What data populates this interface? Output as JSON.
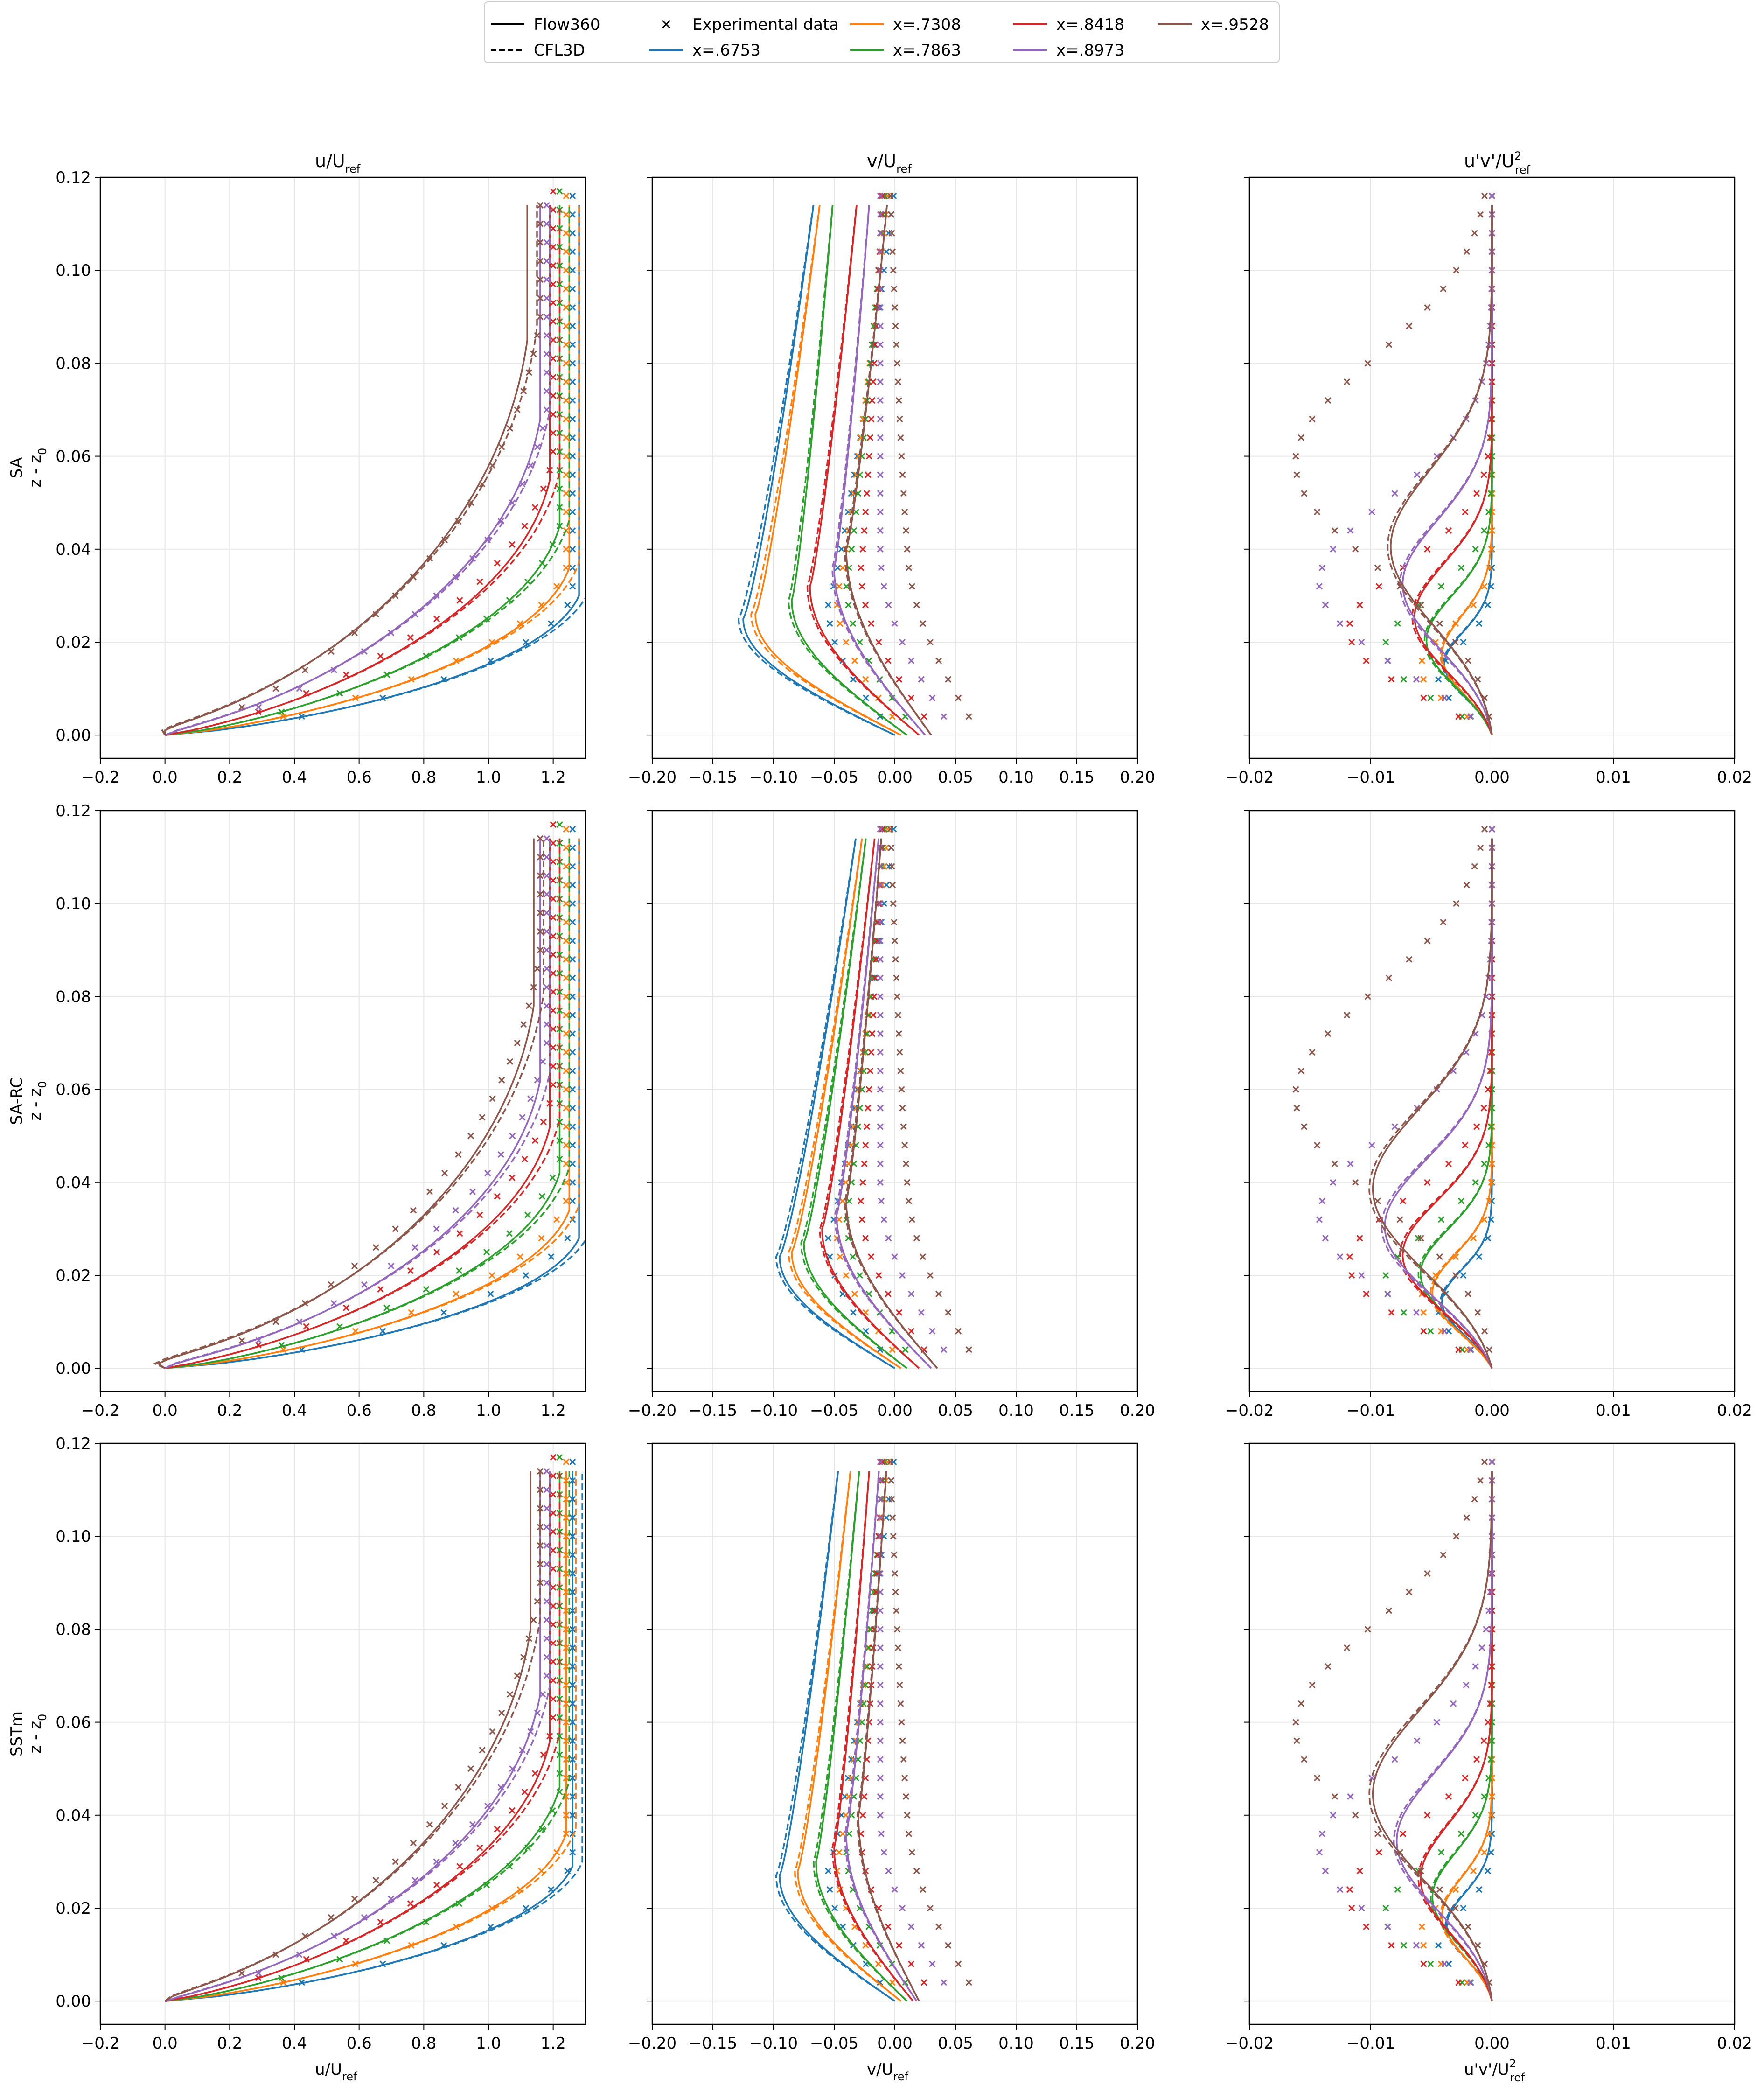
{
  "legend": {
    "entries": [
      {
        "label": "Flow360",
        "kind": "line",
        "dash": "solid",
        "color": "#000000"
      },
      {
        "label": "CFL3D",
        "kind": "line",
        "dash": "dashed",
        "color": "#000000"
      },
      {
        "label": "Experimental data",
        "kind": "marker",
        "color": "#000000"
      },
      {
        "label": "x=.6753",
        "kind": "line",
        "dash": "solid",
        "color": "#1f77b4"
      },
      {
        "label": "x=.7308",
        "kind": "line",
        "dash": "solid",
        "color": "#ff7f0e"
      },
      {
        "label": "x=.7863",
        "kind": "line",
        "dash": "solid",
        "color": "#2ca02c"
      },
      {
        "label": "x=.8418",
        "kind": "line",
        "dash": "solid",
        "color": "#d62728"
      },
      {
        "label": "x=.8973",
        "kind": "line",
        "dash": "solid",
        "color": "#9467bd"
      },
      {
        "label": "x=.9528",
        "kind": "line",
        "dash": "solid",
        "color": "#8c564b"
      }
    ]
  },
  "colors": {
    "x=.6753": "#1f77b4",
    "x=.7308": "#ff7f0e",
    "x=.7863": "#2ca02c",
    "x=.8418": "#d62728",
    "x=.8973": "#9467bd",
    "x=.9528": "#8c564b",
    "grid": "#e6e6e6"
  },
  "chart_data": {
    "type": "line",
    "layout": "3x3 grid of profile plots",
    "grid": true,
    "legend_placement": "top-center",
    "stations": [
      0.6753,
      0.7308,
      0.7863,
      0.8418,
      0.8973,
      0.9528
    ],
    "column_titles": [
      {
        "base": "u/U",
        "sub": "ref",
        "sup": ""
      },
      {
        "base": "v/U",
        "sub": "ref",
        "sup": ""
      },
      {
        "base": "u'v'/U",
        "sub": "ref",
        "sup": "2"
      }
    ],
    "row_labels": [
      {
        "model": "SA",
        "axis": {
          "base": "z - z",
          "sub": "0"
        }
      },
      {
        "model": "SA-RC",
        "axis": {
          "base": "z - z",
          "sub": "0"
        }
      },
      {
        "model": "SSTm",
        "axis": {
          "base": "z - z",
          "sub": "0"
        }
      }
    ],
    "xlabels": [
      {
        "base": "u/U",
        "sub": "ref",
        "sup": ""
      },
      {
        "base": "v/U",
        "sub": "ref",
        "sup": ""
      },
      {
        "base": "u'v'/U",
        "sub": "ref",
        "sup": "2"
      }
    ],
    "ylim": [
      -0.005,
      0.12
    ],
    "yticks": [
      {
        "v": 0.0,
        "label": "0.00"
      },
      {
        "v": 0.02,
        "label": "0.02"
      },
      {
        "v": 0.04,
        "label": "0.04"
      },
      {
        "v": 0.06,
        "label": "0.06"
      },
      {
        "v": 0.08,
        "label": "0.08"
      },
      {
        "v": 0.1,
        "label": "0.10"
      },
      {
        "v": 0.12,
        "label": "0.12"
      }
    ],
    "columns": [
      {
        "quantity": "u",
        "xlim": [
          -0.2,
          1.3
        ],
        "xticks": [
          {
            "v": -0.2,
            "label": "−0.2"
          },
          {
            "v": 0.0,
            "label": "0.0"
          },
          {
            "v": 0.2,
            "label": "0.2"
          },
          {
            "v": 0.4,
            "label": "0.4"
          },
          {
            "v": 0.6,
            "label": "0.6"
          },
          {
            "v": 0.8,
            "label": "0.8"
          },
          {
            "v": 1.0,
            "label": "1.0"
          },
          {
            "v": 1.2,
            "label": "1.2"
          }
        ]
      },
      {
        "quantity": "v",
        "xlim": [
          -0.2,
          0.2
        ],
        "xticks": [
          {
            "v": -0.2,
            "label": "−0.20"
          },
          {
            "v": -0.15,
            "label": "−0.15"
          },
          {
            "v": -0.1,
            "label": "−0.10"
          },
          {
            "v": -0.05,
            "label": "−0.05"
          },
          {
            "v": 0.0,
            "label": "0.00"
          },
          {
            "v": 0.05,
            "label": "0.05"
          },
          {
            "v": 0.1,
            "label": "0.10"
          },
          {
            "v": 0.15,
            "label": "0.15"
          },
          {
            "v": 0.2,
            "label": "0.20"
          }
        ]
      },
      {
        "quantity": "uv",
        "xlim": [
          -0.02,
          0.02
        ],
        "xticks": [
          {
            "v": -0.02,
            "label": "−0.02"
          },
          {
            "v": -0.01,
            "label": "−0.01"
          },
          {
            "v": 0.0,
            "label": "0.00"
          },
          {
            "v": 0.01,
            "label": "0.01"
          },
          {
            "v": 0.02,
            "label": "0.02"
          }
        ]
      }
    ],
    "experimental": {
      "u": {
        "ue": [
          1.26,
          1.24,
          1.22,
          1.2,
          1.18,
          1.16
        ],
        "delta": [
          0.03,
          0.036,
          0.045,
          0.06,
          0.07,
          0.09
        ],
        "z_start": [
          0.004,
          0.004,
          0.005,
          0.005,
          0.006,
          0.006
        ]
      },
      "v": {
        "vmin": [
          -0.055,
          -0.048,
          -0.04,
          -0.028,
          -0.012,
          0.01
        ],
        "z_at_min": [
          0.028,
          0.03,
          0.033,
          0.036,
          0.04,
          0.042
        ],
        "v_wall": [
          0.0,
          0.01,
          0.02,
          0.035,
          0.05,
          0.07
        ],
        "v_top": [
          0.0,
          -0.005,
          -0.008,
          -0.01,
          -0.012,
          -0.004
        ]
      },
      "uv": {
        "peak": [
          -0.0045,
          -0.006,
          -0.009,
          -0.012,
          -0.0145,
          -0.0165
        ],
        "z_peak": [
          0.012,
          0.014,
          0.018,
          0.022,
          0.032,
          0.058
        ],
        "spread": [
          0.01,
          0.012,
          0.016,
          0.02,
          0.026,
          0.032
        ]
      }
    },
    "cfd": [
      {
        "model": "SA",
        "u": {
          "ue": [
            1.28,
            1.25,
            1.22,
            1.19,
            1.16,
            1.12
          ],
          "delta": [
            0.03,
            0.036,
            0.045,
            0.055,
            0.068,
            0.085
          ],
          "umin": [
            0.0,
            0.0,
            0.0,
            -0.02,
            -0.06,
            -0.1
          ]
        },
        "v": {
          "vmin": [
            -0.125,
            -0.115,
            -0.085,
            -0.07,
            -0.05,
            -0.04
          ],
          "z_at_min": [
            0.025,
            0.026,
            0.029,
            0.032,
            0.036,
            0.04
          ],
          "v_wall": [
            0.0,
            0.005,
            0.01,
            0.02,
            0.025,
            0.03
          ],
          "v_top": [
            -0.065,
            -0.06,
            -0.05,
            -0.03,
            -0.02,
            -0.005
          ]
        },
        "uv": {
          "peak": [
            -0.004,
            -0.0042,
            -0.0055,
            -0.0065,
            -0.0075,
            -0.0085
          ],
          "z_peak": [
            0.015,
            0.017,
            0.02,
            0.025,
            0.032,
            0.04
          ],
          "spread": [
            0.01,
            0.012,
            0.014,
            0.017,
            0.02,
            0.024
          ]
        }
      },
      {
        "model": "SA-RC",
        "u": {
          "ue": [
            1.28,
            1.25,
            1.22,
            1.19,
            1.16,
            1.14
          ],
          "delta": [
            0.028,
            0.034,
            0.042,
            0.052,
            0.062,
            0.078
          ],
          "umin": [
            0.0,
            0.0,
            0.0,
            -0.03,
            -0.08,
            -0.14
          ]
        },
        "v": {
          "vmin": [
            -0.095,
            -0.085,
            -0.075,
            -0.06,
            -0.048,
            -0.04
          ],
          "z_at_min": [
            0.024,
            0.025,
            0.027,
            0.03,
            0.033,
            0.036
          ],
          "v_wall": [
            0.0,
            0.005,
            0.01,
            0.02,
            0.03,
            0.035
          ],
          "v_top": [
            -0.03,
            -0.025,
            -0.022,
            -0.015,
            -0.012,
            -0.01
          ]
        },
        "uv": {
          "peak": [
            -0.0042,
            -0.005,
            -0.006,
            -0.0075,
            -0.009,
            -0.01
          ],
          "z_peak": [
            0.014,
            0.016,
            0.02,
            0.024,
            0.03,
            0.038
          ],
          "spread": [
            0.01,
            0.012,
            0.014,
            0.017,
            0.021,
            0.025
          ]
        }
      },
      {
        "model": "SSTm",
        "u": {
          "ue": [
            1.26,
            1.24,
            1.22,
            1.19,
            1.16,
            1.13
          ],
          "delta": [
            0.029,
            0.036,
            0.046,
            0.056,
            0.066,
            0.08
          ],
          "umin": [
            0.0,
            0.0,
            0.0,
            -0.02,
            -0.05,
            -0.07
          ]
        },
        "v": {
          "vmin": [
            -0.095,
            -0.08,
            -0.065,
            -0.05,
            -0.04,
            -0.03
          ],
          "z_at_min": [
            0.027,
            0.028,
            0.03,
            0.033,
            0.036,
            0.04
          ],
          "v_wall": [
            0.0,
            0.005,
            0.01,
            0.015,
            0.018,
            0.02
          ],
          "v_top": [
            -0.045,
            -0.035,
            -0.028,
            -0.02,
            -0.012,
            -0.006
          ]
        },
        "uv": {
          "peak": [
            -0.0038,
            -0.0042,
            -0.005,
            -0.006,
            -0.008,
            -0.01
          ],
          "z_peak": [
            0.016,
            0.018,
            0.022,
            0.026,
            0.034,
            0.044
          ],
          "spread": [
            0.01,
            0.012,
            0.014,
            0.017,
            0.021,
            0.026
          ]
        }
      }
    ]
  }
}
